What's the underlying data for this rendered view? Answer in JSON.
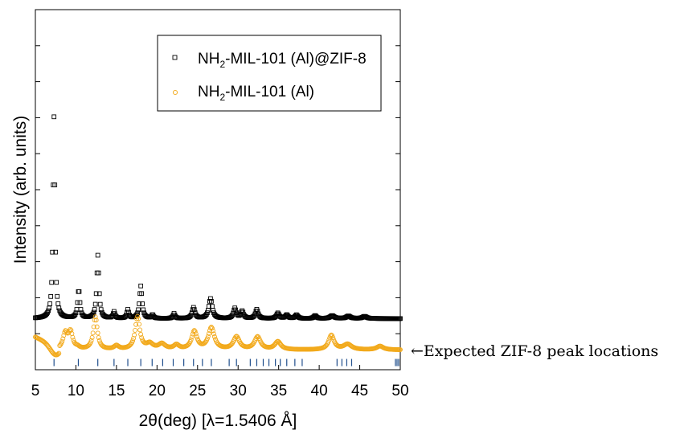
{
  "chart_data": {
    "type": "scatter",
    "title": "",
    "xlabel": "2θ(deg) [λ=1.5406 Å]",
    "ylabel": "Intensity (arb. units)",
    "xlim": [
      5,
      50
    ],
    "ylim": [
      0,
      10
    ],
    "xticks": [
      5,
      10,
      15,
      20,
      25,
      30,
      35,
      40,
      45,
      50
    ],
    "x_tick_labels": [
      "5",
      "10",
      "15",
      "20",
      "25",
      "30",
      "35",
      "40",
      "45",
      "50"
    ],
    "y_tick_labels_shown": false,
    "legend": {
      "position": "top-right",
      "entries": [
        {
          "pre": "NH",
          "sub": "2",
          "post": "-MIL-101 (Al)@ZIF-8"
        },
        {
          "pre": "NH",
          "sub": "2",
          "post": "-MIL-101 (Al)"
        }
      ]
    },
    "series": [
      {
        "name": "NH2-MIL-101 (Al)@ZIF-8",
        "marker": "square",
        "color": "#000000",
        "baseline": 1.42,
        "peaks": [
          {
            "x": 7.3,
            "h": 5.6,
            "w": 0.14
          },
          {
            "x": 10.35,
            "h": 0.8,
            "w": 0.16
          },
          {
            "x": 12.7,
            "h": 1.75,
            "w": 0.16
          },
          {
            "x": 14.7,
            "h": 0.18,
            "w": 0.14
          },
          {
            "x": 16.4,
            "h": 0.24,
            "w": 0.14
          },
          {
            "x": 18.0,
            "h": 0.9,
            "w": 0.18
          },
          {
            "x": 19.45,
            "h": 0.1,
            "w": 0.14
          },
          {
            "x": 22.1,
            "h": 0.14,
            "w": 0.14
          },
          {
            "x": 24.5,
            "h": 0.3,
            "w": 0.2
          },
          {
            "x": 26.6,
            "h": 0.55,
            "w": 0.25
          },
          {
            "x": 29.6,
            "h": 0.28,
            "w": 0.2
          },
          {
            "x": 30.5,
            "h": 0.2,
            "w": 0.2
          },
          {
            "x": 32.3,
            "h": 0.25,
            "w": 0.2
          },
          {
            "x": 34.9,
            "h": 0.15,
            "w": 0.2
          },
          {
            "x": 36.0,
            "h": 0.1,
            "w": 0.2
          },
          {
            "x": 37.2,
            "h": 0.1,
            "w": 0.2
          },
          {
            "x": 39.5,
            "h": 0.08,
            "w": 0.2
          },
          {
            "x": 41.6,
            "h": 0.08,
            "w": 0.3
          },
          {
            "x": 43.6,
            "h": 0.07,
            "w": 0.3
          },
          {
            "x": 45.6,
            "h": 0.06,
            "w": 0.3
          }
        ]
      },
      {
        "name": "NH2-MIL-101 (Al)",
        "marker": "circle",
        "color": "#f2a91a",
        "baseline": 0.55,
        "peaks": [
          {
            "x": 8.7,
            "h": 0.45,
            "w": 0.35
          },
          {
            "x": 9.35,
            "h": 0.45,
            "w": 0.3
          },
          {
            "x": 10.2,
            "h": 0.05,
            "w": 0.3
          },
          {
            "x": 12.4,
            "h": 0.9,
            "w": 0.3
          },
          {
            "x": 15.0,
            "h": 0.1,
            "w": 0.35
          },
          {
            "x": 17.6,
            "h": 0.9,
            "w": 0.35
          },
          {
            "x": 19.1,
            "h": 0.15,
            "w": 0.5
          },
          {
            "x": 20.6,
            "h": 0.15,
            "w": 0.5
          },
          {
            "x": 22.4,
            "h": 0.12,
            "w": 0.4
          },
          {
            "x": 24.6,
            "h": 0.5,
            "w": 0.4
          },
          {
            "x": 26.7,
            "h": 0.6,
            "w": 0.45
          },
          {
            "x": 29.8,
            "h": 0.35,
            "w": 0.45
          },
          {
            "x": 32.4,
            "h": 0.35,
            "w": 0.45
          },
          {
            "x": 34.9,
            "h": 0.22,
            "w": 0.45
          },
          {
            "x": 41.5,
            "h": 0.4,
            "w": 0.4
          },
          {
            "x": 43.5,
            "h": 0.15,
            "w": 0.6
          },
          {
            "x": 47.5,
            "h": 0.1,
            "w": 0.5
          }
        ]
      }
    ],
    "reference_ticks": {
      "label": "←Expected ZIF-8 peak locations",
      "color": "#1f4e8c",
      "y_range": [
        0.1,
        0.3
      ],
      "positions": [
        7.3,
        10.3,
        12.7,
        14.7,
        16.4,
        18.0,
        19.4,
        20.7,
        22.0,
        23.3,
        24.5,
        25.6,
        26.7,
        28.9,
        29.8,
        31.5,
        32.3,
        33.1,
        33.8,
        34.6,
        35.2,
        36.0,
        37.0,
        37.9,
        42.2,
        42.8,
        43.4,
        44.0,
        49.4,
        49.6,
        49.8
      ]
    }
  }
}
